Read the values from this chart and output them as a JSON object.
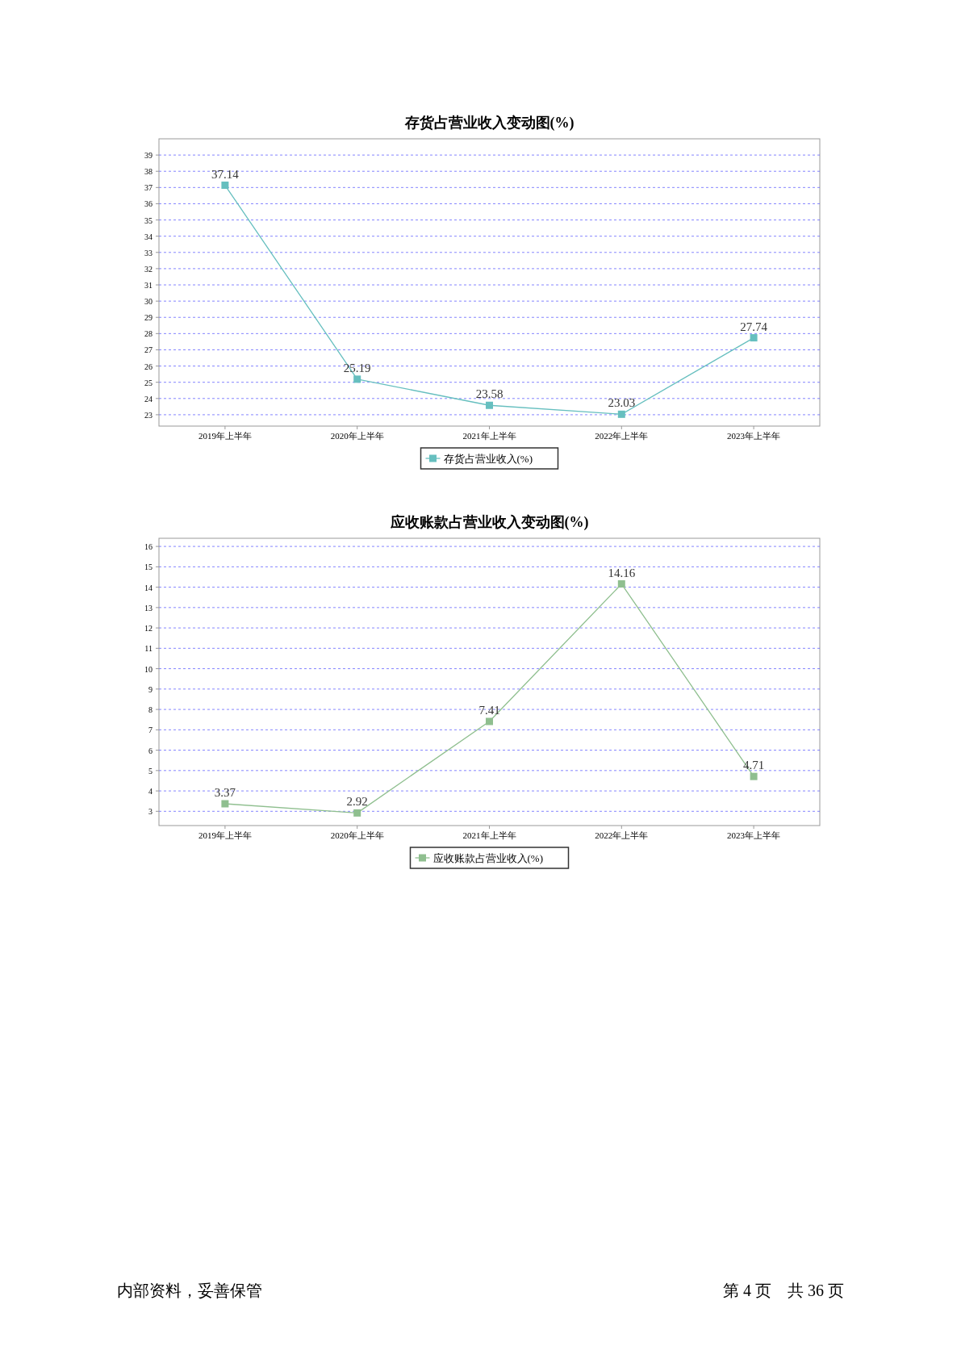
{
  "chart_data": [
    {
      "type": "line",
      "title": "存货占营业收入变动图(%)",
      "categories": [
        "2019年上半年",
        "2020年上半年",
        "2021年上半年",
        "2022年上半年",
        "2023年上半年"
      ],
      "series": [
        {
          "name": "存货占营业收入(%)",
          "color": "#66bfbf",
          "values": [
            37.14,
            25.19,
            23.58,
            23.03,
            27.74
          ]
        }
      ],
      "ylim": [
        22.3,
        40
      ],
      "yticks": [
        23,
        24,
        25,
        26,
        27,
        28,
        29,
        30,
        31,
        32,
        33,
        34,
        35,
        36,
        37,
        38,
        39
      ],
      "grid": "y",
      "legend": "bottom",
      "marker": "square",
      "line_style": "solid",
      "data_labels": true
    },
    {
      "type": "line",
      "title": "应收账款占营业收入变动图(%)",
      "categories": [
        "2019年上半年",
        "2020年上半年",
        "2021年上半年",
        "2022年上半年",
        "2023年上半年"
      ],
      "series": [
        {
          "name": "应收账款占营业收入(%)",
          "color": "#8fbf8f",
          "values": [
            3.37,
            2.92,
            7.41,
            14.16,
            4.71
          ]
        }
      ],
      "ylim": [
        2.3,
        16.4
      ],
      "yticks": [
        3,
        4,
        5,
        6,
        7,
        8,
        9,
        10,
        11,
        12,
        13,
        14,
        15,
        16
      ],
      "grid": "y",
      "legend": "bottom",
      "marker": "square",
      "line_style": "solid",
      "data_labels": true,
      "annotations": [
        "内部资料，妥善保管",
        "第 4 页　共 36 页"
      ]
    }
  ]
}
